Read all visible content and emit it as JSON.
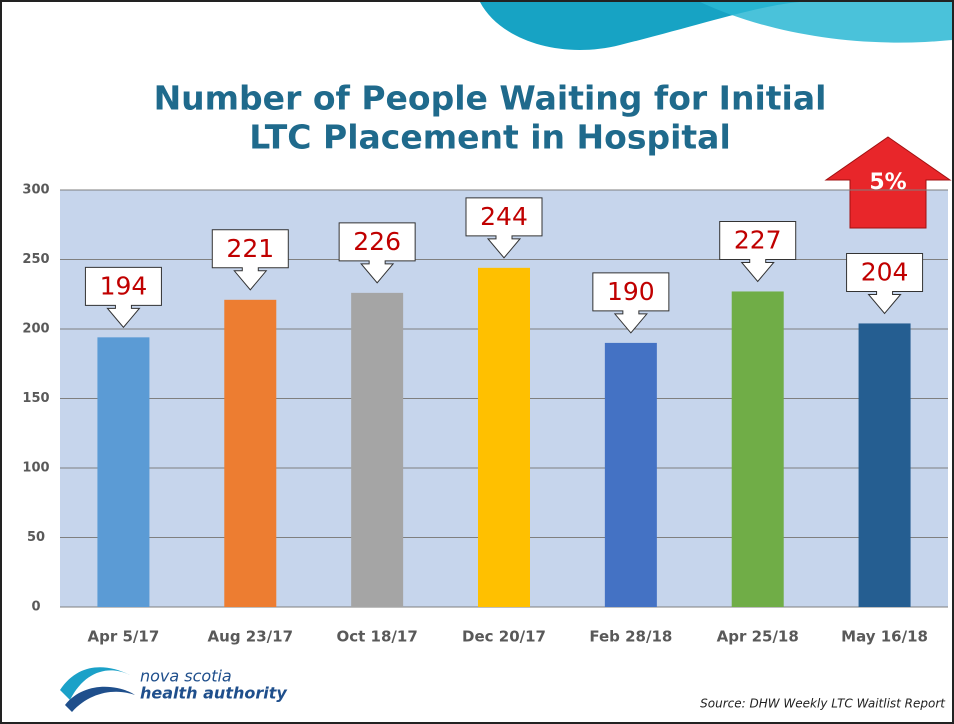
{
  "chart_data": {
    "type": "bar",
    "title": [
      "Number of People Waiting for Initial",
      "LTC Placement in Hospital"
    ],
    "categories": [
      "Apr 5/17",
      "Aug 23/17",
      "Oct 18/17",
      "Dec 20/17",
      "Feb 28/18",
      "Apr 25/18",
      "May 16/18"
    ],
    "values": [
      194,
      221,
      226,
      244,
      190,
      227,
      204
    ],
    "colors": [
      "#5b9bd5",
      "#ed7d31",
      "#a5a5a5",
      "#ffc000",
      "#4472c4",
      "#70ad47",
      "#255e91"
    ],
    "ylim": [
      0,
      300
    ],
    "yticks": [
      0,
      50,
      100,
      150,
      200,
      250,
      300
    ],
    "grid": true,
    "annotation": "5%",
    "logo": [
      "nova scotia",
      "health authority"
    ],
    "source": "Source: DHW Weekly LTC Waitlist Report"
  }
}
